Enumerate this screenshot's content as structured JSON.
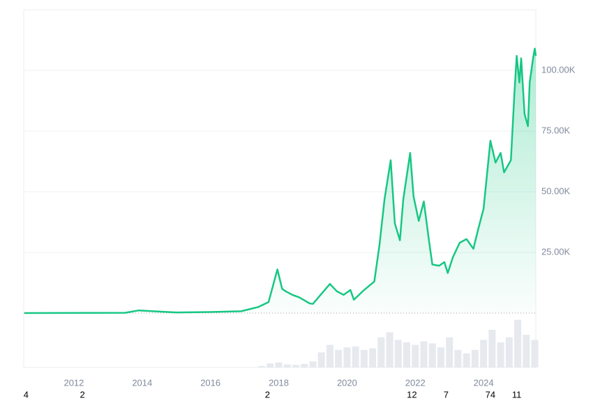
{
  "chart_data": {
    "type": "line",
    "xlim": [
      2010.53,
      2025.53
    ],
    "xticks": [
      2012,
      2014,
      2016,
      2018,
      2020,
      2022,
      2024
    ],
    "ylim": [
      0,
      125000
    ],
    "yticks": [
      {
        "value": 25000,
        "label": "25.00K"
      },
      {
        "value": 50000,
        "label": "50.00K"
      },
      {
        "value": 75000,
        "label": "75.00K"
      },
      {
        "value": 100000,
        "label": "100.00K"
      }
    ],
    "grid": true,
    "series": [
      {
        "color": "#16c784",
        "x": [
          2010.55,
          2011.5,
          2013.5,
          2013.9,
          2014.5,
          2015.0,
          2016.0,
          2016.9,
          2017.4,
          2017.7,
          2017.96,
          2018.1,
          2018.2,
          2018.4,
          2018.6,
          2018.9,
          2019.0,
          2019.5,
          2019.7,
          2019.9,
          2020.1,
          2020.2,
          2020.5,
          2020.8,
          2020.95,
          2021.1,
          2021.28,
          2021.4,
          2021.55,
          2021.65,
          2021.85,
          2021.95,
          2022.1,
          2022.25,
          2022.4,
          2022.5,
          2022.7,
          2022.85,
          2022.95,
          2023.1,
          2023.3,
          2023.5,
          2023.7,
          2023.85,
          2024.0,
          2024.2,
          2024.35,
          2024.5,
          2024.6,
          2024.8,
          2024.9,
          2024.97,
          2025.05,
          2025.1,
          2025.2,
          2025.3,
          2025.35,
          2025.45,
          2025.5,
          2025.53
        ],
        "values": [
          0,
          15,
          120,
          1100,
          600,
          250,
          430,
          750,
          2500,
          4500,
          18000,
          10000,
          9000,
          7500,
          6500,
          4000,
          3800,
          12000,
          9000,
          7500,
          9500,
          5500,
          9500,
          13000,
          28000,
          47000,
          63000,
          37000,
          30000,
          47000,
          66000,
          48000,
          38000,
          46000,
          30000,
          20000,
          19500,
          21000,
          16500,
          23000,
          29000,
          30500,
          26500,
          35000,
          43000,
          71000,
          62000,
          66000,
          58000,
          63000,
          90000,
          106000,
          95000,
          105000,
          82000,
          77000,
          95000,
          105000,
          109000,
          106000
        ]
      }
    ],
    "volume": {
      "color": "#e6e9ee",
      "ylim": [
        0,
        100
      ],
      "x": [
        2017.5,
        2017.75,
        2018.0,
        2018.25,
        2018.5,
        2018.75,
        2019.0,
        2019.25,
        2019.5,
        2019.75,
        2020.0,
        2020.25,
        2020.5,
        2020.75,
        2021.0,
        2021.25,
        2021.5,
        2021.75,
        2022.0,
        2022.25,
        2022.5,
        2022.75,
        2023.0,
        2023.25,
        2023.5,
        2023.75,
        2024.0,
        2024.25,
        2024.5,
        2024.75,
        2025.0,
        2025.25,
        2025.5
      ],
      "values": [
        3,
        8,
        10,
        6,
        5,
        7,
        12,
        30,
        45,
        35,
        40,
        42,
        35,
        38,
        60,
        70,
        55,
        50,
        45,
        52,
        48,
        40,
        60,
        35,
        28,
        35,
        55,
        75,
        50,
        60,
        95,
        65,
        55
      ]
    },
    "events": [
      {
        "x": 2010.6,
        "label": "4"
      },
      {
        "x": 2012.25,
        "label": "2"
      },
      {
        "x": 2017.67,
        "label": "2"
      },
      {
        "x": 2021.9,
        "label": "12"
      },
      {
        "x": 2022.9,
        "label": "7"
      },
      {
        "x": 2024.2,
        "label": "74"
      },
      {
        "x": 2024.97,
        "label": "11"
      }
    ]
  }
}
